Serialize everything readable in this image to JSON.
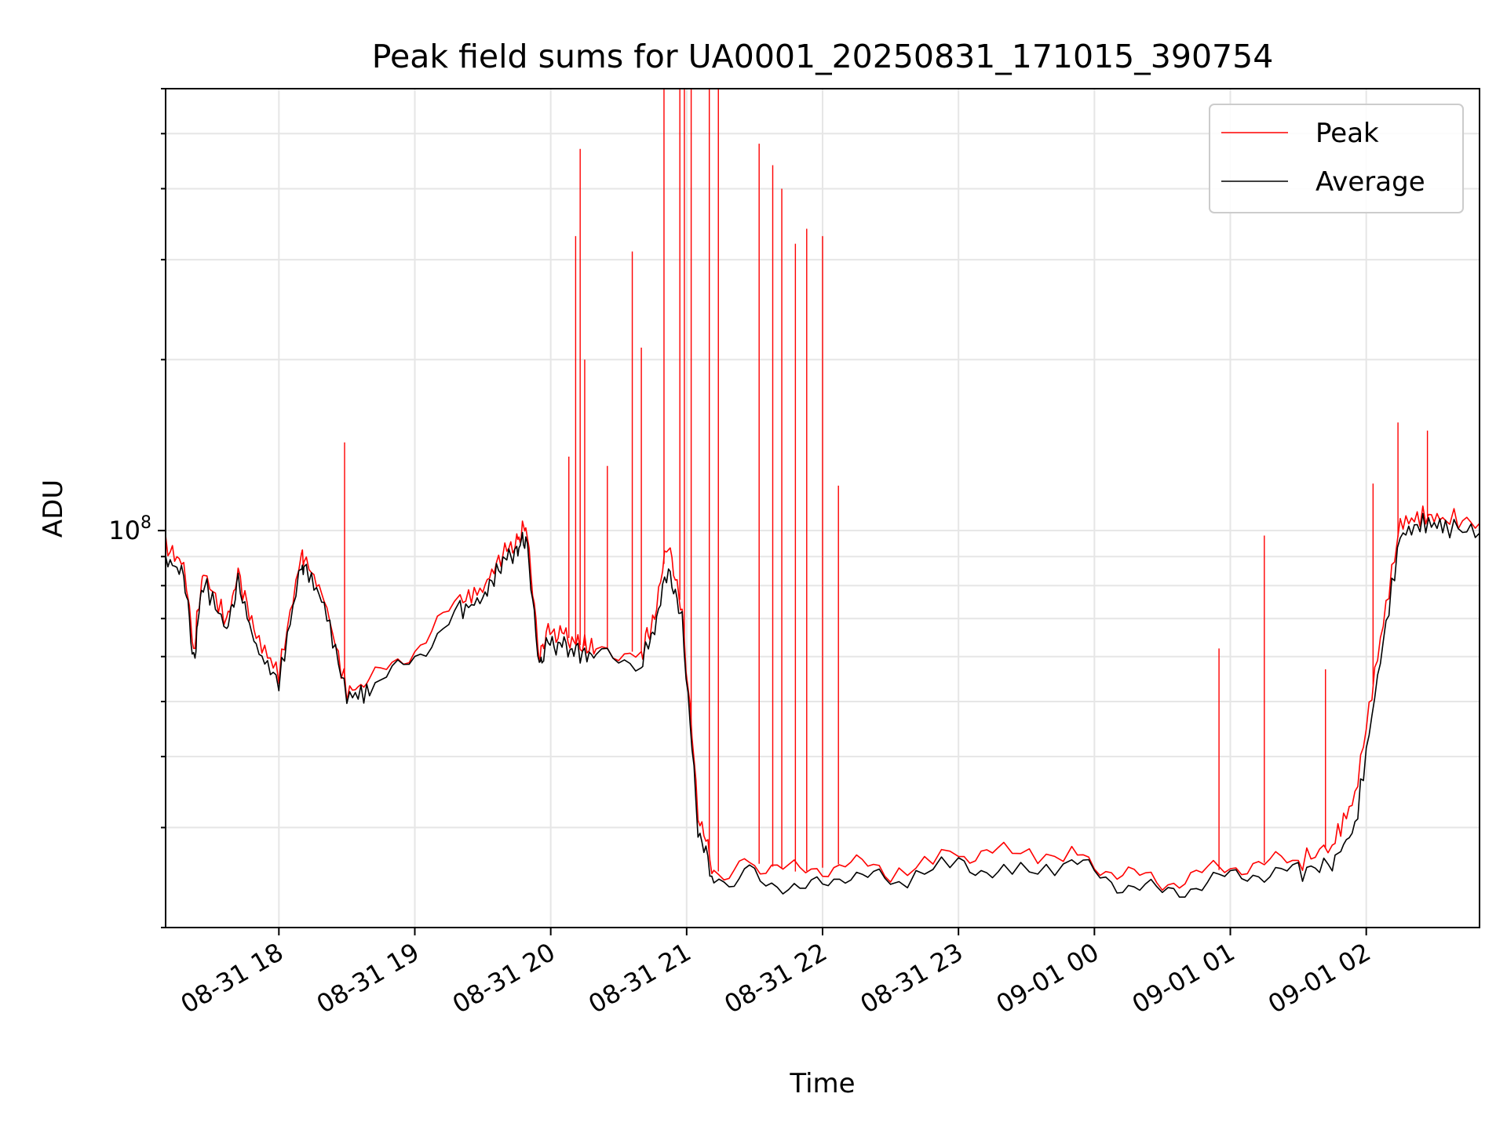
{
  "chart_data": {
    "type": "line",
    "title": "Peak field sums for UA0001_20250831_171015_390754",
    "xlabel": "Time",
    "ylabel": "ADU",
    "yscale": "log",
    "xlim": [
      "2025-08-31 17:10",
      "2025-09-01 02:50"
    ],
    "ylim": [
      20000000,
      600000000
    ],
    "grid": true,
    "legend_position": "top-right",
    "x_tick_labels": [
      "08-31 18",
      "08-31 19",
      "08-31 20",
      "08-31 21",
      "08-31 22",
      "08-31 23",
      "09-01 00",
      "09-01 01",
      "09-01 02"
    ],
    "x_ticks": [
      "2025-08-31 18:00",
      "2025-08-31 19:00",
      "2025-08-31 20:00",
      "2025-08-31 21:00",
      "2025-08-31 22:00",
      "2025-08-31 23:00",
      "2025-09-01 00:00",
      "2025-09-01 01:00",
      "2025-09-01 02:00"
    ],
    "y_tick_label": {
      "base": "10",
      "exp": "8"
    },
    "y_tick_value": 100000000,
    "series": [
      {
        "name": "Peak",
        "color": "#ff0000",
        "x": [
          "2025-08-31 17:10",
          "2025-08-31 17:18",
          "2025-08-31 17:23",
          "2025-08-31 17:24",
          "2025-08-31 17:27",
          "2025-08-31 17:37",
          "2025-08-31 17:42",
          "2025-08-31 17:50",
          "2025-08-31 18:00",
          "2025-08-31 18:10",
          "2025-08-31 18:11",
          "2025-08-31 18:20",
          "2025-08-31 18:30",
          "2025-08-31 18:40",
          "2025-08-31 19:00",
          "2025-08-31 19:20",
          "2025-08-31 19:30",
          "2025-08-31 19:38",
          "2025-08-31 19:45",
          "2025-08-31 19:49",
          "2025-08-31 19:55",
          "2025-08-31 19:58",
          "2025-08-31 20:05",
          "2025-08-31 20:12",
          "2025-08-31 20:20",
          "2025-08-31 20:40",
          "2025-08-31 20:45",
          "2025-08-31 20:52",
          "2025-08-31 20:58",
          "2025-08-31 21:05",
          "2025-08-31 21:12",
          "2025-08-31 21:30",
          "2025-08-31 21:50",
          "2025-08-31 22:10",
          "2025-08-31 22:30",
          "2025-08-31 23:00",
          "2025-08-31 23:20",
          "2025-08-31 23:50",
          "2025-09-01 00:10",
          "2025-09-01 00:30",
          "2025-09-01 00:50",
          "2025-09-01 01:10",
          "2025-09-01 01:30",
          "2025-09-01 01:45",
          "2025-09-01 01:55",
          "2025-09-01 02:05",
          "2025-09-01 02:15",
          "2025-09-01 02:25",
          "2025-09-01 02:35",
          "2025-09-01 02:50"
        ],
        "values": [
          94000000,
          87000000,
          60000000,
          72000000,
          84000000,
          69000000,
          84000000,
          65000000,
          56000000,
          91000000,
          90000000,
          76000000,
          52000000,
          54000000,
          62000000,
          75000000,
          79000000,
          90000000,
          96000000,
          102000000,
          59000000,
          66000000,
          66000000,
          63000000,
          62000000,
          61000000,
          69000000,
          96000000,
          72000000,
          32000000,
          25000000,
          26000000,
          25000000,
          26000000,
          25000000,
          27000000,
          27000000,
          27000000,
          25000000,
          24000000,
          25000000,
          26000000,
          26000000,
          28000000,
          34000000,
          60000000,
          103000000,
          106000000,
          105000000,
          103000000
        ],
        "spikes": [
          [
            "2025-08-31 18:29",
            143000000
          ],
          [
            "2025-08-31 20:08",
            135000000
          ],
          [
            "2025-08-31 20:11",
            330000000
          ],
          [
            "2025-08-31 20:13",
            470000000
          ],
          [
            "2025-08-31 20:15",
            200000000
          ],
          [
            "2025-08-31 20:25",
            130000000
          ],
          [
            "2025-08-31 20:36",
            310000000
          ],
          [
            "2025-08-31 20:40",
            210000000
          ],
          [
            "2025-08-31 20:50",
            600000000
          ],
          [
            "2025-08-31 20:57",
            600000000
          ],
          [
            "2025-08-31 20:59",
            600000000
          ],
          [
            "2025-08-31 21:02",
            600000000
          ],
          [
            "2025-08-31 21:10",
            600000000
          ],
          [
            "2025-08-31 21:14",
            600000000
          ],
          [
            "2025-08-31 21:32",
            480000000
          ],
          [
            "2025-08-31 21:38",
            440000000
          ],
          [
            "2025-08-31 21:42",
            400000000
          ],
          [
            "2025-08-31 21:48",
            320000000
          ],
          [
            "2025-08-31 21:53",
            340000000
          ],
          [
            "2025-08-31 22:00",
            330000000
          ],
          [
            "2025-08-31 22:07",
            120000000
          ],
          [
            "2025-09-01 00:55",
            62000000
          ],
          [
            "2025-09-01 01:15",
            98000000
          ],
          [
            "2025-09-01 01:42",
            57000000
          ],
          [
            "2025-09-01 02:03",
            121000000
          ],
          [
            "2025-09-01 02:14",
            155000000
          ],
          [
            "2025-09-01 02:27",
            150000000
          ]
        ]
      },
      {
        "name": "Average",
        "color": "#000000",
        "x": [
          "2025-08-31 17:10",
          "2025-08-31 17:18",
          "2025-08-31 17:23",
          "2025-08-31 17:24",
          "2025-08-31 17:27",
          "2025-08-31 17:37",
          "2025-08-31 17:42",
          "2025-08-31 17:50",
          "2025-08-31 18:00",
          "2025-08-31 18:10",
          "2025-08-31 18:11",
          "2025-08-31 18:20",
          "2025-08-31 18:30",
          "2025-08-31 18:40",
          "2025-08-31 19:00",
          "2025-08-31 19:20",
          "2025-08-31 19:30",
          "2025-08-31 19:38",
          "2025-08-31 19:45",
          "2025-08-31 19:49",
          "2025-08-31 19:55",
          "2025-08-31 19:58",
          "2025-08-31 20:05",
          "2025-08-31 20:12",
          "2025-08-31 20:20",
          "2025-08-31 20:40",
          "2025-08-31 20:45",
          "2025-08-31 20:52",
          "2025-08-31 20:58",
          "2025-08-31 21:05",
          "2025-08-31 21:12",
          "2025-08-31 21:30",
          "2025-08-31 21:50",
          "2025-08-31 22:10",
          "2025-08-31 22:30",
          "2025-08-31 23:00",
          "2025-08-31 23:20",
          "2025-08-31 23:50",
          "2025-09-01 00:10",
          "2025-09-01 00:30",
          "2025-09-01 00:50",
          "2025-09-01 01:10",
          "2025-09-01 01:30",
          "2025-09-01 01:45",
          "2025-09-01 01:55",
          "2025-09-01 02:05",
          "2025-09-01 02:15",
          "2025-09-01 02:25",
          "2025-09-01 02:35",
          "2025-09-01 02:50"
        ],
        "values": [
          89000000,
          84000000,
          57000000,
          70000000,
          81000000,
          67000000,
          81000000,
          62000000,
          54000000,
          88000000,
          87000000,
          74000000,
          51000000,
          52000000,
          60000000,
          72000000,
          76000000,
          87000000,
          93000000,
          97000000,
          57000000,
          63000000,
          63000000,
          61000000,
          60000000,
          59000000,
          66000000,
          86000000,
          70000000,
          30000000,
          24000000,
          25000000,
          23000000,
          25000000,
          24000000,
          26000000,
          25000000,
          26000000,
          24000000,
          23000000,
          24000000,
          25000000,
          25000000,
          26000000,
          30000000,
          55000000,
          98000000,
          103000000,
          102000000,
          99000000
        ]
      }
    ]
  }
}
